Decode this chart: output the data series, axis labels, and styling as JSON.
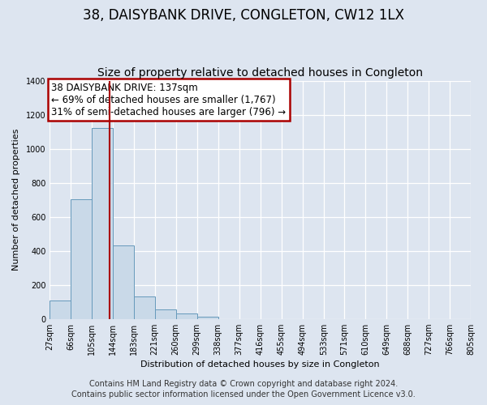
{
  "title": "38, DAISYBANK DRIVE, CONGLETON, CW12 1LX",
  "subtitle": "Size of property relative to detached houses in Congleton",
  "xlabel": "Distribution of detached houses by size in Congleton",
  "ylabel": "Number of detached properties",
  "bin_edges": [
    27,
    66,
    105,
    144,
    183,
    221,
    260,
    299,
    338,
    377,
    416,
    455,
    494,
    533,
    571,
    610,
    649,
    688,
    727,
    766,
    805
  ],
  "bar_heights": [
    110,
    705,
    1120,
    430,
    130,
    55,
    30,
    15,
    0,
    0,
    0,
    0,
    0,
    0,
    0,
    0,
    0,
    0,
    0,
    0
  ],
  "bar_color": "#c9d9e8",
  "bar_edge_color": "#6699bb",
  "property_size": 137,
  "vline_color": "#aa0000",
  "annotation_line1": "38 DAISYBANK DRIVE: 137sqm",
  "annotation_line2": "← 69% of detached houses are smaller (1,767)",
  "annotation_line3": "31% of semi-detached houses are larger (796) →",
  "annotation_box_edge": "#aa0000",
  "ylim": [
    0,
    1400
  ],
  "yticks": [
    0,
    200,
    400,
    600,
    800,
    1000,
    1200,
    1400
  ],
  "footer_line1": "Contains HM Land Registry data © Crown copyright and database right 2024.",
  "footer_line2": "Contains public sector information licensed under the Open Government Licence v3.0.",
  "background_color": "#dde5f0",
  "plot_background_color": "#dde5f0",
  "title_fontsize": 12,
  "subtitle_fontsize": 10,
  "axis_fontsize": 8,
  "tick_fontsize": 7,
  "footer_fontsize": 7
}
